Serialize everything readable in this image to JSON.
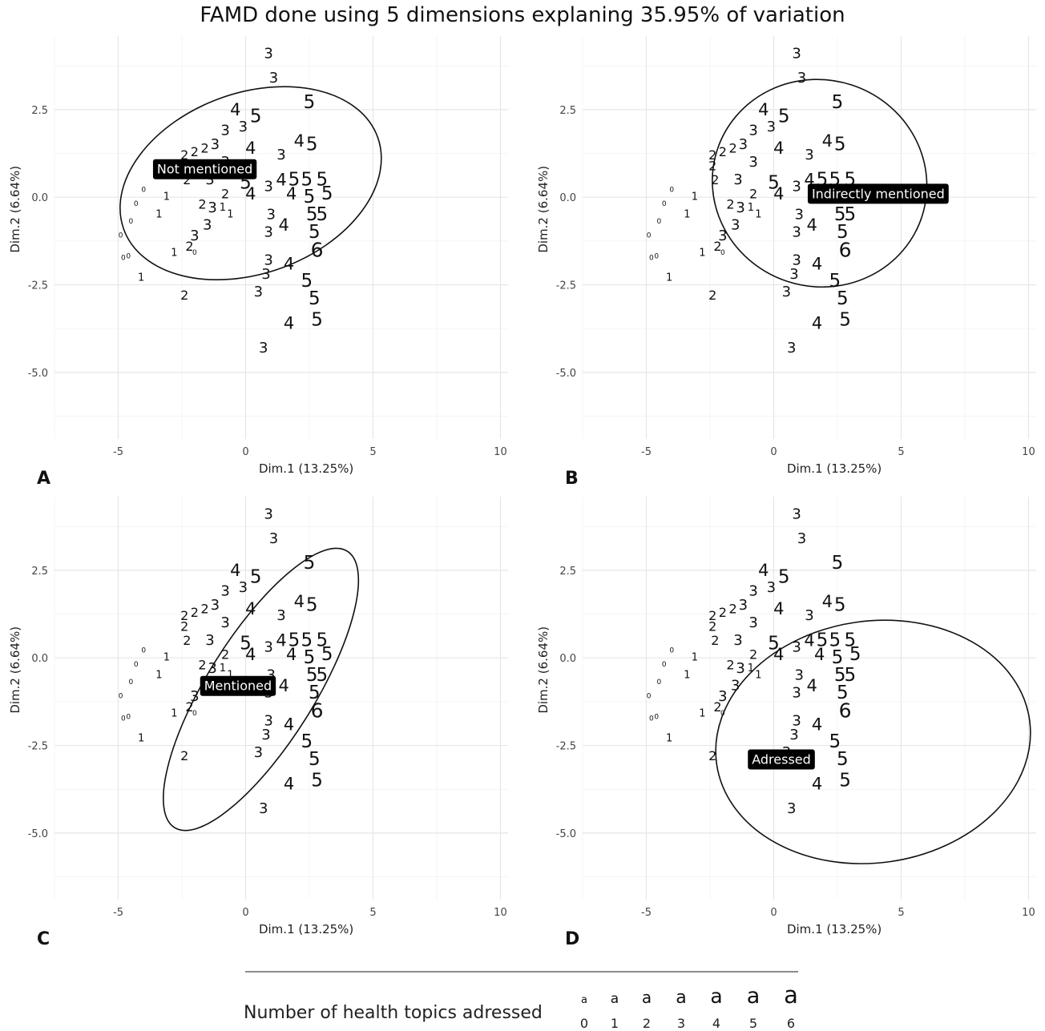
{
  "title": "FAMD done using 5 dimensions explaning 35.95% of variation",
  "chart_data": {
    "type": "scatter",
    "xlabel": "Dim.1 (13.25%)",
    "ylabel": "Dim.2 (6.64%)",
    "xlim": [
      -7.5,
      10.3
    ],
    "ylim": [
      -6.9,
      4.6
    ],
    "xticks": [
      -5,
      0,
      5,
      10
    ],
    "xtick_labels": [
      "-5",
      "0",
      "5",
      "10"
    ],
    "yticks": [
      2.5,
      0,
      -2.5,
      -5
    ],
    "ytick_labels": [
      "2.5",
      "0.0",
      "-2.5",
      "-5.0"
    ],
    "grid": true,
    "point_label_note": "each point is drawn as its number of health topics adressed (0-6)",
    "points": [
      {
        "x": 0.9,
        "y": 4.1,
        "n": 3
      },
      {
        "x": 1.1,
        "y": 3.4,
        "n": 3
      },
      {
        "x": 2.5,
        "y": 2.7,
        "n": 5
      },
      {
        "x": -0.4,
        "y": 2.5,
        "n": 4
      },
      {
        "x": 0.4,
        "y": 2.3,
        "n": 5
      },
      {
        "x": -0.1,
        "y": 2.0,
        "n": 3
      },
      {
        "x": -0.8,
        "y": 1.9,
        "n": 3
      },
      {
        "x": 2.1,
        "y": 1.6,
        "n": 4
      },
      {
        "x": 2.6,
        "y": 1.5,
        "n": 5
      },
      {
        "x": -1.2,
        "y": 1.5,
        "n": 3
      },
      {
        "x": 0.2,
        "y": 1.4,
        "n": 4
      },
      {
        "x": -1.6,
        "y": 1.4,
        "n": 2
      },
      {
        "x": -2.0,
        "y": 1.3,
        "n": 2
      },
      {
        "x": -2.4,
        "y": 1.2,
        "n": 2
      },
      {
        "x": -2.4,
        "y": 0.9,
        "n": 2
      },
      {
        "x": -0.8,
        "y": 1.0,
        "n": 3
      },
      {
        "x": 1.4,
        "y": 1.2,
        "n": 3
      },
      {
        "x": 0.0,
        "y": 0.4,
        "n": 5
      },
      {
        "x": 1.4,
        "y": 0.5,
        "n": 4
      },
      {
        "x": 1.9,
        "y": 0.5,
        "n": 5
      },
      {
        "x": 2.4,
        "y": 0.5,
        "n": 5
      },
      {
        "x": 3.0,
        "y": 0.5,
        "n": 5
      },
      {
        "x": -1.4,
        "y": 0.5,
        "n": 3
      },
      {
        "x": -2.3,
        "y": 0.5,
        "n": 2
      },
      {
        "x": 0.9,
        "y": 0.3,
        "n": 3
      },
      {
        "x": 1.8,
        "y": 0.1,
        "n": 4
      },
      {
        "x": 2.5,
        "y": 0.0,
        "n": 5
      },
      {
        "x": 3.2,
        "y": 0.1,
        "n": 5
      },
      {
        "x": 0.2,
        "y": 0.1,
        "n": 4
      },
      {
        "x": -0.8,
        "y": 0.1,
        "n": 2
      },
      {
        "x": -1.7,
        "y": -0.2,
        "n": 2
      },
      {
        "x": -1.3,
        "y": -0.3,
        "n": 3
      },
      {
        "x": -0.9,
        "y": -0.3,
        "n": 1
      },
      {
        "x": -0.6,
        "y": -0.5,
        "n": 1
      },
      {
        "x": 1.0,
        "y": -0.5,
        "n": 3
      },
      {
        "x": 2.6,
        "y": -0.5,
        "n": 5
      },
      {
        "x": 3.0,
        "y": -0.5,
        "n": 5
      },
      {
        "x": 1.5,
        "y": -0.8,
        "n": 4
      },
      {
        "x": -1.5,
        "y": -0.8,
        "n": 3
      },
      {
        "x": -2.0,
        "y": -1.1,
        "n": 3
      },
      {
        "x": 0.9,
        "y": -1.0,
        "n": 3
      },
      {
        "x": 2.7,
        "y": -1.0,
        "n": 5
      },
      {
        "x": 2.8,
        "y": -1.5,
        "n": 6
      },
      {
        "x": -3.1,
        "y": 0.0,
        "n": 1
      },
      {
        "x": -3.4,
        "y": -0.5,
        "n": 1
      },
      {
        "x": -4.0,
        "y": 0.2,
        "n": 0
      },
      {
        "x": -4.3,
        "y": -0.2,
        "n": 0
      },
      {
        "x": -4.5,
        "y": -0.7,
        "n": 0
      },
      {
        "x": -4.9,
        "y": -1.1,
        "n": 0
      },
      {
        "x": -2.2,
        "y": -1.4,
        "n": 2
      },
      {
        "x": -2.0,
        "y": -1.6,
        "n": 0
      },
      {
        "x": -2.8,
        "y": -1.6,
        "n": 1
      },
      {
        "x": -4.6,
        "y": -1.7,
        "n": 0
      },
      {
        "x": -4.8,
        "y": -1.75,
        "n": 0
      },
      {
        "x": -4.1,
        "y": -2.3,
        "n": 1
      },
      {
        "x": 0.9,
        "y": -1.8,
        "n": 3
      },
      {
        "x": 1.7,
        "y": -1.9,
        "n": 4
      },
      {
        "x": 0.8,
        "y": -2.2,
        "n": 3
      },
      {
        "x": 2.4,
        "y": -2.4,
        "n": 5
      },
      {
        "x": 0.5,
        "y": -2.7,
        "n": 3
      },
      {
        "x": -2.4,
        "y": -2.8,
        "n": 2
      },
      {
        "x": 2.7,
        "y": -2.9,
        "n": 5
      },
      {
        "x": 1.7,
        "y": -3.6,
        "n": 4
      },
      {
        "x": 2.8,
        "y": -3.5,
        "n": 5
      },
      {
        "x": 0.7,
        "y": -4.3,
        "n": 3
      }
    ],
    "panels": [
      {
        "letter": "A",
        "group": "Not mentioned",
        "ellipse": {
          "cx": 0.2,
          "cy": 0.4,
          "rx": 10.6,
          "ry": 5.15,
          "angle": 20
        },
        "tag": {
          "x": -1.6,
          "y": 0.8
        }
      },
      {
        "letter": "B",
        "group": "Indirectly mentioned",
        "ellipse": {
          "cx": 1.8,
          "cy": 0.4,
          "rx": 8.45,
          "ry": 5.9,
          "angle": -18
        },
        "tag": {
          "x": 4.1,
          "y": 0.1
        }
      },
      {
        "letter": "C",
        "group": "Mentioned",
        "ellipse": {
          "cx": 0.6,
          "cy": -0.9,
          "rx": 4.2,
          "ry": 9.3,
          "angle": -32
        },
        "tag": {
          "x": -0.3,
          "y": -0.8
        }
      },
      {
        "letter": "D",
        "group": "Adressed",
        "ellipse": {
          "cx": 3.9,
          "cy": -2.4,
          "rx": 12.4,
          "ry": 6.9,
          "angle": 8
        },
        "tag": {
          "x": 0.3,
          "y": -2.9
        }
      }
    ]
  },
  "legend": {
    "title": "Number of health topics adressed",
    "key_glyph": "a",
    "levels": [
      "0",
      "1",
      "2",
      "3",
      "4",
      "5",
      "6"
    ]
  }
}
